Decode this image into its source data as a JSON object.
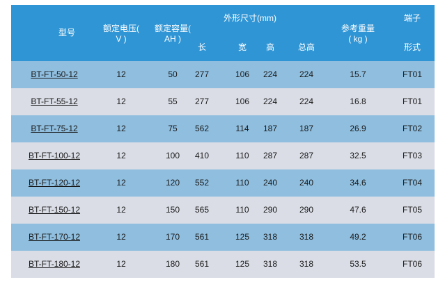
{
  "header": {
    "model": "型号",
    "voltage_line1": "额定电压(",
    "voltage_line2": "V )",
    "capacity_line1": "额定容量(",
    "capacity_line2": "AH )",
    "dimensions": "外形尺寸(mm)",
    "length": "长",
    "width": "宽",
    "height": "高",
    "total_height": "总高",
    "weight_line1": "参考重量",
    "weight_line2": "( kg )",
    "terminal_line1": "端子",
    "terminal_line2": "形式"
  },
  "rows": [
    {
      "model": "BT-FT-50-12",
      "voltage": "12",
      "capacity": "50",
      "length": "277",
      "width": "106",
      "height": "224",
      "total_height": "224",
      "weight": "15.7",
      "terminal": "FT01"
    },
    {
      "model": "BT-FT-55-12",
      "voltage": "12",
      "capacity": "55",
      "length": "277",
      "width": "106",
      "height": "224",
      "total_height": "224",
      "weight": "16.8",
      "terminal": "FT01"
    },
    {
      "model": "BT-FT-75-12",
      "voltage": "12",
      "capacity": "75",
      "length": "562",
      "width": "114",
      "height": "187",
      "total_height": "187",
      "weight": "26.9",
      "terminal": "FT02"
    },
    {
      "model": "BT-FT-100-12",
      "voltage": "12",
      "capacity": "100",
      "length": "410",
      "width": "110",
      "height": "287",
      "total_height": "287",
      "weight": "32.5",
      "terminal": "FT03"
    },
    {
      "model": "BT-FT-120-12",
      "voltage": "12",
      "capacity": "120",
      "length": "552",
      "width": "110",
      "height": "240",
      "total_height": "240",
      "weight": "34.6",
      "terminal": "FT04"
    },
    {
      "model": "BT-FT-150-12",
      "voltage": "12",
      "capacity": "150",
      "length": "565",
      "width": "110",
      "height": "290",
      "total_height": "290",
      "weight": "47.6",
      "terminal": "FT05"
    },
    {
      "model": "BT-FT-170-12",
      "voltage": "12",
      "capacity": "170",
      "length": "561",
      "width": "125",
      "height": "318",
      "total_height": "318",
      "weight": "49.2",
      "terminal": "FT06"
    },
    {
      "model": "BT-FT-180-12",
      "voltage": "12",
      "capacity": "180",
      "length": "561",
      "width": "125",
      "height": "318",
      "total_height": "318",
      "weight": "53.5",
      "terminal": "FT06"
    }
  ],
  "colors": {
    "header_bg": "#2f95d5",
    "row_odd_bg": "#8fbedf",
    "row_even_bg": "#dadde6",
    "header_text": "#ffffff",
    "body_text": "#1a1a1a"
  }
}
